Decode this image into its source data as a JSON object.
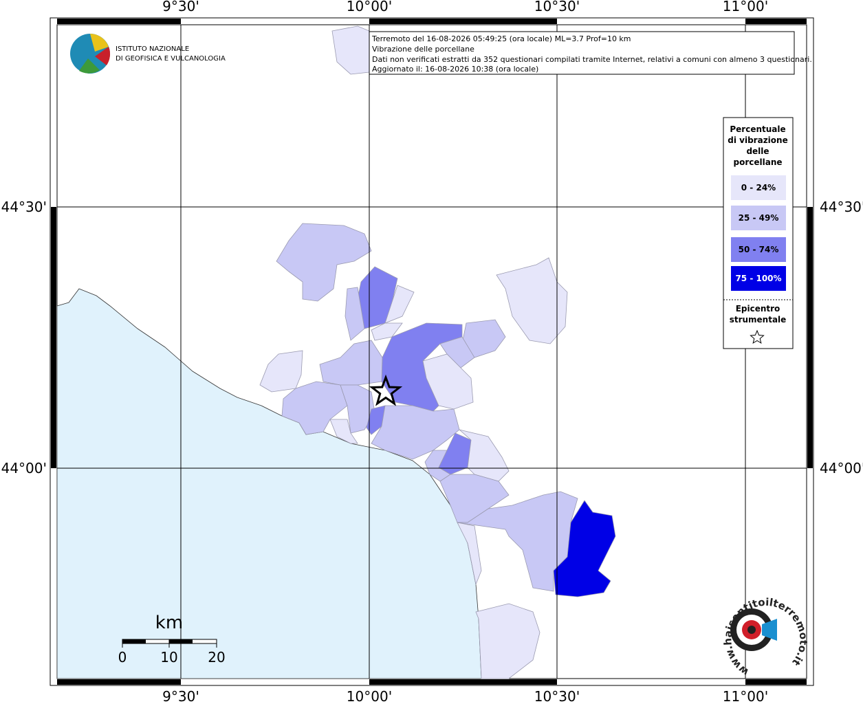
{
  "info": {
    "lines": [
      "Terremoto del 16-08-2026 05:49:25 (ora locale) ML=3.7 Prof=10 km",
      "Vibrazione delle porcellane",
      "Dati non verificati estratti da 352 questionari compilati tramite Internet, relativi a comuni con almeno 3 questionari.",
      "Aggiornato il: 16-08-2026 10:38 (ora locale)"
    ]
  },
  "logo": {
    "lines": [
      "ISTITUTO NAZIONALE",
      "DI GEOFISICA E VULCANOLOGIA"
    ]
  },
  "legend": {
    "title": [
      "Percentuale",
      "di vibrazione",
      "delle",
      "porcellane"
    ],
    "items": [
      {
        "label": "0 - 24%",
        "color": "#e6e6fa"
      },
      {
        "label": "25 - 49%",
        "color": "#c8c8f5"
      },
      {
        "label": "50 - 74%",
        "color": "#8080f0"
      },
      {
        "label": "75 - 100%",
        "color": "#0000e6"
      }
    ],
    "epicentre": [
      "Epicentro",
      "strumentale"
    ]
  },
  "grid": {
    "lon": [
      "9°30'",
      "10°00'",
      "10°30'",
      "11°00'"
    ],
    "lat": [
      "44°30'",
      "44°00'"
    ]
  },
  "scale": {
    "unit": "km",
    "ticks": [
      "0",
      "10",
      "20"
    ]
  },
  "site": "www.haisentitoilterremoto.it"
}
